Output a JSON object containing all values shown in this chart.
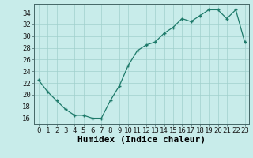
{
  "x": [
    0,
    1,
    2,
    3,
    4,
    5,
    6,
    7,
    8,
    9,
    10,
    11,
    12,
    13,
    14,
    15,
    16,
    17,
    18,
    19,
    20,
    21,
    22,
    23
  ],
  "y": [
    22.5,
    20.5,
    19.0,
    17.5,
    16.5,
    16.5,
    16.0,
    16.0,
    19.0,
    21.5,
    25.0,
    27.5,
    28.5,
    29.0,
    30.5,
    31.5,
    33.0,
    32.5,
    33.5,
    34.5,
    34.5,
    33.0,
    34.5,
    29.0
  ],
  "xlabel": "Humidex (Indice chaleur)",
  "line_color": "#1e7a6a",
  "marker_color": "#1e7a6a",
  "bg_color": "#c8ecea",
  "grid_color": "#a0d0cc",
  "xlim": [
    -0.5,
    23.5
  ],
  "ylim": [
    15.0,
    35.5
  ],
  "yticks": [
    16,
    18,
    20,
    22,
    24,
    26,
    28,
    30,
    32,
    34
  ],
  "xticks": [
    0,
    1,
    2,
    3,
    4,
    5,
    6,
    7,
    8,
    9,
    10,
    11,
    12,
    13,
    14,
    15,
    16,
    17,
    18,
    19,
    20,
    21,
    22,
    23
  ],
  "xlabel_fontsize": 8,
  "tick_fontsize": 6.5
}
